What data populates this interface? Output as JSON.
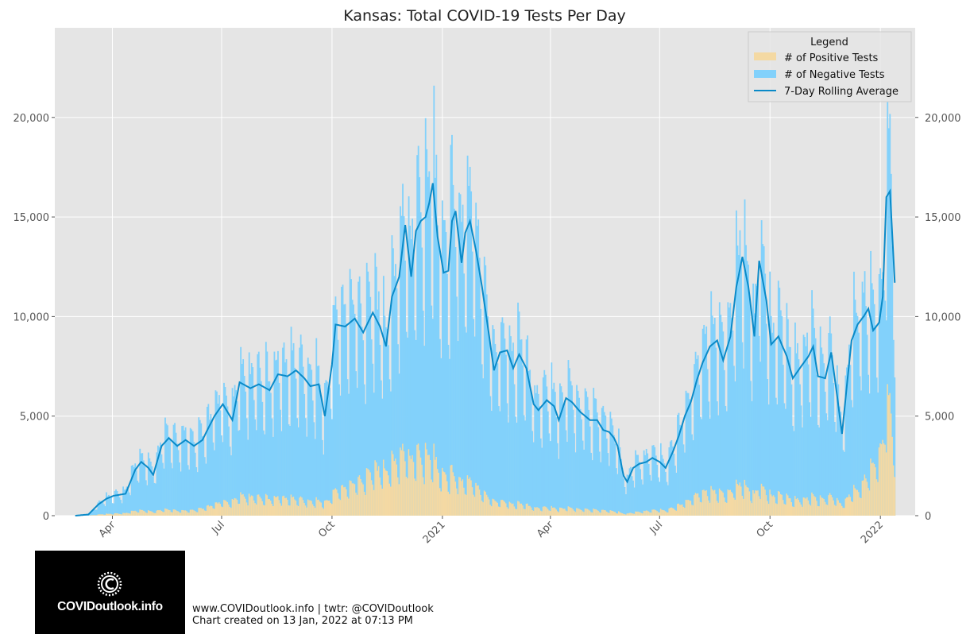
{
  "chart_data": {
    "type": "bar",
    "title": "Kansas: Total COVID-19 Tests Per Day",
    "stacked": true,
    "ylim": [
      0,
      24500
    ],
    "yticks": [
      0,
      5000,
      10000,
      15000,
      20000
    ],
    "ytick_labels": [
      "0",
      "5,000",
      "10,000",
      "15,000",
      "20,000"
    ],
    "x_start": "2020-03-01",
    "x_end": "2022-01-13",
    "x_range": [
      "2020-02-13",
      "2022-01-30"
    ],
    "xticks": [
      {
        "date": "2020-04-01",
        "label": "Apr"
      },
      {
        "date": "2020-07-01",
        "label": "Jul"
      },
      {
        "date": "2020-10-01",
        "label": "Oct"
      },
      {
        "date": "2021-01-01",
        "label": "2021"
      },
      {
        "date": "2021-04-01",
        "label": "Apr"
      },
      {
        "date": "2021-07-01",
        "label": "Jul"
      },
      {
        "date": "2021-10-01",
        "label": "Oct"
      },
      {
        "date": "2022-01-01",
        "label": "2022"
      }
    ],
    "rolling_average_keypoints": [
      [
        "2020-03-01",
        0
      ],
      [
        "2020-03-12",
        60
      ],
      [
        "2020-03-20",
        550
      ],
      [
        "2020-03-27",
        850
      ],
      [
        "2020-04-02",
        1000
      ],
      [
        "2020-04-12",
        1100
      ],
      [
        "2020-04-20",
        2300
      ],
      [
        "2020-04-25",
        2700
      ],
      [
        "2020-05-01",
        2400
      ],
      [
        "2020-05-05",
        2050
      ],
      [
        "2020-05-12",
        3500
      ],
      [
        "2020-05-18",
        3900
      ],
      [
        "2020-05-25",
        3500
      ],
      [
        "2020-06-01",
        3800
      ],
      [
        "2020-06-08",
        3500
      ],
      [
        "2020-06-15",
        3800
      ],
      [
        "2020-06-25",
        5000
      ],
      [
        "2020-07-02",
        5600
      ],
      [
        "2020-07-10",
        4800
      ],
      [
        "2020-07-16",
        6700
      ],
      [
        "2020-07-25",
        6400
      ],
      [
        "2020-08-01",
        6600
      ],
      [
        "2020-08-10",
        6300
      ],
      [
        "2020-08-17",
        7100
      ],
      [
        "2020-08-25",
        7000
      ],
      [
        "2020-09-01",
        7300
      ],
      [
        "2020-09-08",
        6900
      ],
      [
        "2020-09-13",
        6500
      ],
      [
        "2020-09-20",
        6600
      ],
      [
        "2020-09-25",
        5000
      ],
      [
        "2020-10-01",
        7600
      ],
      [
        "2020-10-04",
        9600
      ],
      [
        "2020-10-12",
        9500
      ],
      [
        "2020-10-20",
        9900
      ],
      [
        "2020-10-27",
        9200
      ],
      [
        "2020-11-04",
        10200
      ],
      [
        "2020-11-10",
        9500
      ],
      [
        "2020-11-15",
        8500
      ],
      [
        "2020-11-20",
        11000
      ],
      [
        "2020-11-26",
        12000
      ],
      [
        "2020-12-01",
        14600
      ],
      [
        "2020-12-06",
        12000
      ],
      [
        "2020-12-10",
        14300
      ],
      [
        "2020-12-14",
        14800
      ],
      [
        "2020-12-18",
        15000
      ],
      [
        "2020-12-21",
        15700
      ],
      [
        "2020-12-24",
        16700
      ],
      [
        "2020-12-28",
        14000
      ],
      [
        "2021-01-02",
        12200
      ],
      [
        "2021-01-06",
        12300
      ],
      [
        "2021-01-09",
        14800
      ],
      [
        "2021-01-12",
        15300
      ],
      [
        "2021-01-17",
        12700
      ],
      [
        "2021-01-20",
        14200
      ],
      [
        "2021-01-24",
        14800
      ],
      [
        "2021-01-29",
        13300
      ],
      [
        "2021-02-03",
        11500
      ],
      [
        "2021-02-09",
        9000
      ],
      [
        "2021-02-13",
        7300
      ],
      [
        "2021-02-18",
        8200
      ],
      [
        "2021-02-24",
        8300
      ],
      [
        "2021-03-01",
        7400
      ],
      [
        "2021-03-06",
        8100
      ],
      [
        "2021-03-12",
        7400
      ],
      [
        "2021-03-18",
        5600
      ],
      [
        "2021-03-22",
        5300
      ],
      [
        "2021-03-29",
        5800
      ],
      [
        "2021-04-04",
        5500
      ],
      [
        "2021-04-08",
        4800
      ],
      [
        "2021-04-14",
        5900
      ],
      [
        "2021-04-19",
        5700
      ],
      [
        "2021-04-26",
        5200
      ],
      [
        "2021-05-04",
        4800
      ],
      [
        "2021-05-10",
        4800
      ],
      [
        "2021-05-15",
        4300
      ],
      [
        "2021-05-20",
        4200
      ],
      [
        "2021-05-24",
        3900
      ],
      [
        "2021-05-27",
        3500
      ],
      [
        "2021-06-01",
        2000
      ],
      [
        "2021-06-04",
        1700
      ],
      [
        "2021-06-09",
        2400
      ],
      [
        "2021-06-14",
        2600
      ],
      [
        "2021-06-20",
        2700
      ],
      [
        "2021-06-25",
        2900
      ],
      [
        "2021-07-01",
        2700
      ],
      [
        "2021-07-06",
        2400
      ],
      [
        "2021-07-12",
        3200
      ],
      [
        "2021-07-17",
        4000
      ],
      [
        "2021-07-22",
        5000
      ],
      [
        "2021-07-27",
        5700
      ],
      [
        "2021-08-01",
        6800
      ],
      [
        "2021-08-06",
        7700
      ],
      [
        "2021-08-12",
        8500
      ],
      [
        "2021-08-18",
        8800
      ],
      [
        "2021-08-23",
        7800
      ],
      [
        "2021-08-29",
        9000
      ],
      [
        "2021-09-03",
        11500
      ],
      [
        "2021-09-08",
        13000
      ],
      [
        "2021-09-13",
        11500
      ],
      [
        "2021-09-18",
        9000
      ],
      [
        "2021-09-22",
        12800
      ],
      [
        "2021-09-28",
        10800
      ],
      [
        "2021-10-02",
        8600
      ],
      [
        "2021-10-08",
        9000
      ],
      [
        "2021-10-15",
        8000
      ],
      [
        "2021-10-20",
        6900
      ],
      [
        "2021-10-27",
        7500
      ],
      [
        "2021-11-02",
        8000
      ],
      [
        "2021-11-06",
        8500
      ],
      [
        "2021-11-10",
        7000
      ],
      [
        "2021-11-16",
        6900
      ],
      [
        "2021-11-21",
        8200
      ],
      [
        "2021-11-26",
        6000
      ],
      [
        "2021-11-30",
        4100
      ],
      [
        "2021-12-04",
        6500
      ],
      [
        "2021-12-08",
        8800
      ],
      [
        "2021-12-13",
        9600
      ],
      [
        "2021-12-18",
        10000
      ],
      [
        "2021-12-22",
        10400
      ],
      [
        "2021-12-26",
        9300
      ],
      [
        "2021-12-31",
        9700
      ],
      [
        "2022-01-03",
        11000
      ],
      [
        "2022-01-06",
        16000
      ],
      [
        "2022-01-09",
        16300
      ],
      [
        "2022-01-13",
        11700
      ]
    ],
    "positive_share_keypoints": [
      [
        "2020-03-01",
        0.08
      ],
      [
        "2020-04-15",
        0.1
      ],
      [
        "2020-06-01",
        0.06
      ],
      [
        "2020-07-15",
        0.14
      ],
      [
        "2020-09-15",
        0.1
      ],
      [
        "2020-10-15",
        0.14
      ],
      [
        "2020-11-15",
        0.24
      ],
      [
        "2020-12-15",
        0.19
      ],
      [
        "2021-01-15",
        0.12
      ],
      [
        "2021-03-01",
        0.07
      ],
      [
        "2021-06-01",
        0.05
      ],
      [
        "2021-08-01",
        0.14
      ],
      [
        "2021-09-15",
        0.11
      ],
      [
        "2021-11-01",
        0.1
      ],
      [
        "2021-12-15",
        0.13
      ],
      [
        "2022-01-05",
        0.33
      ],
      [
        "2022-01-13",
        0.28
      ]
    ],
    "legend": {
      "title": "Legend",
      "position": "top-right",
      "entries": [
        {
          "label": "# of Positive Tests",
          "kind": "patch",
          "color": "#f4d9a3"
        },
        {
          "label": "# of Negative Tests",
          "kind": "patch",
          "color": "#82d1fb"
        },
        {
          "label": "7-Day Rolling Average",
          "kind": "line",
          "color": "#0a8ac8"
        }
      ]
    }
  },
  "colors": {
    "background": "#e5e5e5",
    "grid": "#ffffff",
    "positive": "#f4d9a3",
    "negative": "#82d1fb",
    "rolling": "#0a8ac8"
  },
  "logo": {
    "text": "COVIDoutlook.info",
    "icon": "covid-c-icon"
  },
  "credit": {
    "line1": "www.COVIDoutlook.info | twtr: @COVIDoutlook",
    "line2": "Chart created on 13 Jan, 2022 at 07:13 PM"
  }
}
